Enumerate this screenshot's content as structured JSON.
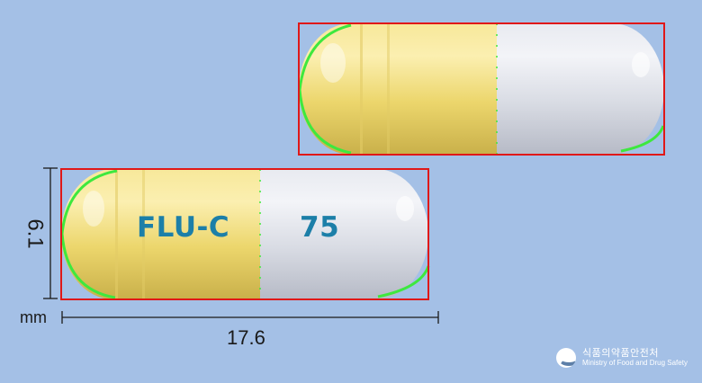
{
  "capsules": {
    "left": {
      "imprint_cap": "FLU-C",
      "imprint_body": "75"
    },
    "colors": {
      "cap": "#f0dc7c",
      "body": "#dcdfe7",
      "imprint": "#1c7fa8",
      "detection_box": "#e01818",
      "contour": "#3ee83e"
    }
  },
  "dimensions": {
    "height": "6.1",
    "unit": "mm",
    "width": "17.6"
  },
  "logo": {
    "korean": "식품의약품안전처",
    "english": "Ministry of Food and Drug Safety"
  }
}
